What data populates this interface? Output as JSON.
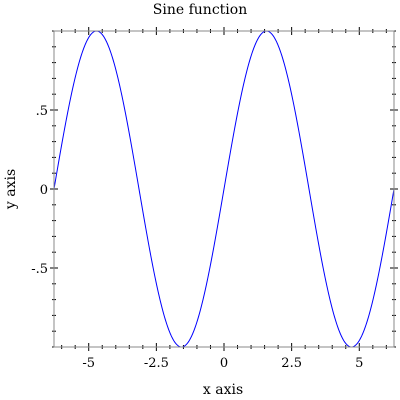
{
  "chart_data": {
    "type": "line",
    "title": "Sine function",
    "xlabel": "x axis",
    "ylabel": "y axis",
    "xlim": [
      -6.283,
      6.283
    ],
    "ylim": [
      -1,
      1
    ],
    "grid": false,
    "legend": "none",
    "function": "sin(x)",
    "series": [
      {
        "color": "#0000ff",
        "x": [
          -6.283,
          -5.498,
          -4.712,
          -3.927,
          -3.142,
          -2.356,
          -1.571,
          -0.785,
          0,
          0.785,
          1.571,
          2.356,
          3.142,
          3.927,
          4.712,
          5.498,
          6.283
        ],
        "y": [
          0,
          0.707,
          1,
          0.707,
          0,
          -0.707,
          -1,
          -0.707,
          0,
          0.707,
          1,
          0.707,
          0,
          -0.707,
          -1,
          -0.707,
          0
        ]
      }
    ],
    "x_ticks": [
      {
        "value": -5,
        "label": "-5"
      },
      {
        "value": -2.5,
        "label": "-2.5"
      },
      {
        "value": 0,
        "label": "0"
      },
      {
        "value": 2.5,
        "label": "2.5"
      },
      {
        "value": 5,
        "label": "5"
      }
    ],
    "y_ticks": [
      {
        "value": 0.5,
        "label": ".5"
      },
      {
        "value": 0,
        "label": "0"
      },
      {
        "value": -0.5,
        "label": "-.5"
      }
    ],
    "x_minor_step": 0.5,
    "y_minor_step": 0.1
  }
}
